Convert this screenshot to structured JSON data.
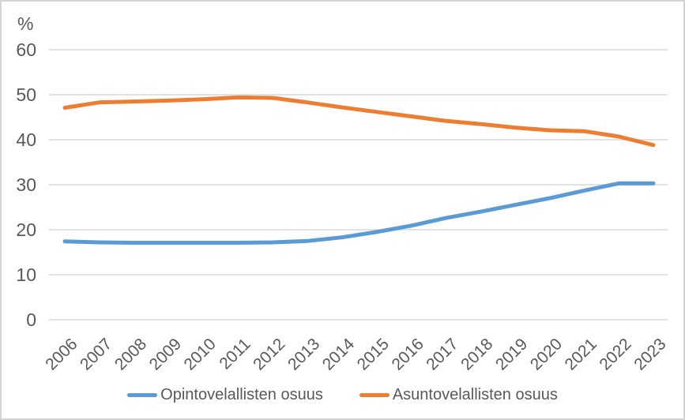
{
  "chart_data": {
    "type": "line",
    "title": "",
    "ylabel": "%",
    "xlabel": "",
    "categories": [
      "2006",
      "2007",
      "2008",
      "2009",
      "2010",
      "2011",
      "2012",
      "2013",
      "2014",
      "2015",
      "2016",
      "2017",
      "2018",
      "2019",
      "2020",
      "2021",
      "2022",
      "2023"
    ],
    "series": [
      {
        "name": "Opintovelallisten osuus",
        "color": "#5B9BD5",
        "values": [
          17.4,
          17.2,
          17.1,
          17.1,
          17.1,
          17.1,
          17.2,
          17.5,
          18.3,
          19.5,
          20.9,
          22.6,
          24.0,
          25.5,
          27.0,
          28.7,
          30.3,
          30.3
        ]
      },
      {
        "name": "Asuntovelallisten osuus",
        "color": "#ED7D31",
        "values": [
          47.1,
          48.3,
          48.5,
          48.7,
          49.0,
          49.4,
          49.3,
          48.3,
          47.2,
          46.2,
          45.2,
          44.2,
          43.5,
          42.7,
          42.1,
          41.9,
          40.7,
          38.8
        ]
      }
    ],
    "ylim": [
      0,
      60
    ],
    "yticks": [
      0,
      10,
      20,
      30,
      40,
      50,
      60
    ],
    "grid": "horizontal",
    "legend_position": "bottom",
    "axis_text_color": "#595959",
    "gridline_color": "#D9D9D9",
    "background_color": "#FFFFFF",
    "border_color": "#D3D3D3"
  }
}
